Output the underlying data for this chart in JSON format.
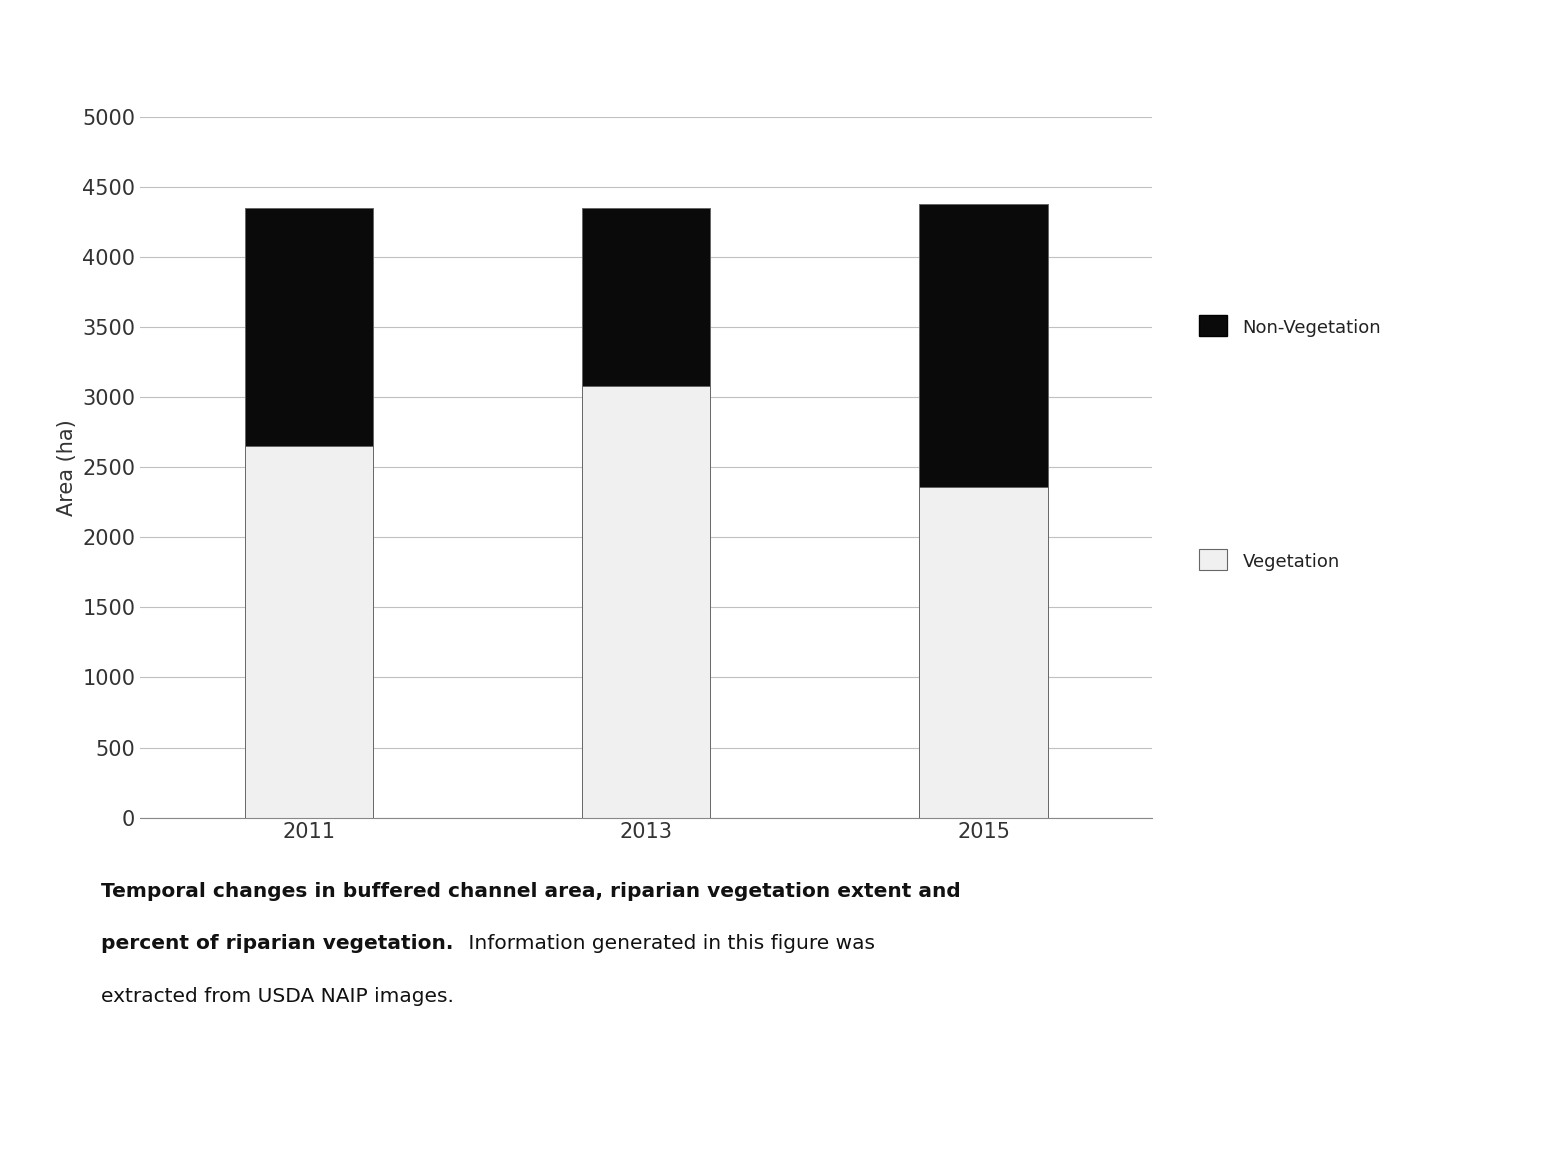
{
  "years": [
    "2011",
    "2013",
    "2015"
  ],
  "vegetation": [
    2650,
    3080,
    2360
  ],
  "non_vegetation": [
    1700,
    1270,
    2020
  ],
  "veg_color": "#f0f0f0",
  "nonveg_color": "#0a0a0a",
  "bar_edge_color": "#666666",
  "bar_width": 0.38,
  "ylabel": "Area (ha)",
  "ylim": [
    0,
    5000
  ],
  "yticks": [
    0,
    500,
    1000,
    1500,
    2000,
    2500,
    3000,
    3500,
    4000,
    4500,
    5000
  ],
  "legend_nonveg": "Non-Vegetation",
  "legend_veg": "Vegetation",
  "grid_color": "#c0c0c0",
  "background_color": "#ffffff",
  "tick_label_fontsize": 15,
  "ylabel_fontsize": 15,
  "legend_fontsize": 13,
  "caption_fontsize": 14.5,
  "caption_line1_bold": "Temporal changes in buffered channel area, riparian vegetation extent and",
  "caption_line2_bold": "percent of riparian vegetation.",
  "caption_line2_normal": " Information generated in this figure was",
  "caption_line3_normal": "extracted from USDA NAIP images."
}
